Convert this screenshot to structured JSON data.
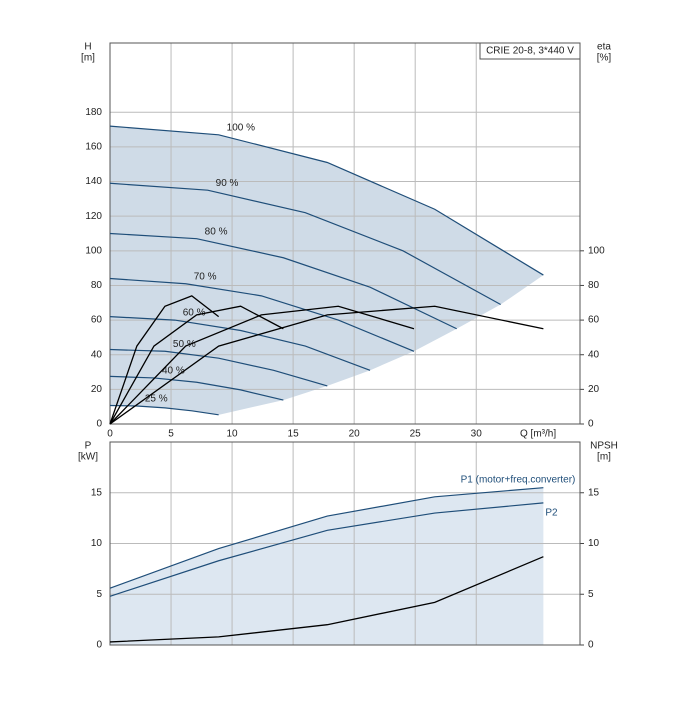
{
  "chart_data": [
    {
      "type": "line",
      "annotation": "CRIE 20-8, 3*440 V",
      "y_label": [
        "H",
        "[m]"
      ],
      "y2_label": [
        "eta",
        "[%]"
      ],
      "x_label": "Q [m³/h]",
      "xlim": [
        0,
        38.5
      ],
      "xticks": [
        0,
        5,
        10,
        15,
        20,
        25,
        30
      ],
      "ylim": [
        0,
        220
      ],
      "yticks": [
        0,
        20,
        40,
        60,
        80,
        100,
        120,
        140,
        160,
        180
      ],
      "y2lim": [
        0,
        220
      ],
      "y2ticks": [
        0,
        20,
        40,
        60,
        80,
        100
      ],
      "grid": true,
      "series": [
        {
          "name": "100 %",
          "color": "#1f4e79",
          "x": [
            0,
            8.9,
            17.8,
            26.6,
            35.5
          ],
          "values": [
            172,
            167,
            151,
            124,
            86
          ]
        },
        {
          "name": "90 %",
          "color": "#1f4e79",
          "x": [
            0,
            8,
            16,
            24,
            32
          ],
          "values": [
            139,
            135,
            122,
            100,
            69
          ]
        },
        {
          "name": "80 %",
          "color": "#1f4e79",
          "x": [
            0,
            7.1,
            14.2,
            21.3,
            28.4
          ],
          "values": [
            110,
            107,
            96,
            79,
            55
          ]
        },
        {
          "name": "70 %",
          "color": "#1f4e79",
          "x": [
            0,
            6.2,
            12.4,
            18.7,
            24.9
          ],
          "values": [
            84,
            81,
            74,
            60,
            42
          ]
        },
        {
          "name": "60 %",
          "color": "#1f4e79",
          "x": [
            0,
            5.3,
            10.7,
            16,
            21.3
          ],
          "values": [
            62,
            60,
            54,
            45,
            31
          ]
        },
        {
          "name": "50 %",
          "color": "#1f4e79",
          "x": [
            0,
            4.5,
            8.9,
            13.4,
            17.8
          ],
          "values": [
            43,
            42,
            38,
            31,
            22
          ]
        },
        {
          "name": "40 %",
          "color": "#1f4e79",
          "x": [
            0,
            3.6,
            7.1,
            10.7,
            14.2
          ],
          "values": [
            27.5,
            26.6,
            24.1,
            19.7,
            13.8
          ]
        },
        {
          "name": "25 %",
          "color": "#1f4e79",
          "x": [
            0,
            2.2,
            4.5,
            6.7,
            8.9
          ],
          "values": [
            10.7,
            10.4,
            9.3,
            7.6,
            5.3
          ]
        },
        {
          "color": "#000000",
          "axis": "y2",
          "x": [
            0,
            8.9,
            17.8,
            26.6,
            35.5
          ],
          "values": [
            0,
            45,
            63,
            68,
            55
          ]
        },
        {
          "color": "#000000",
          "axis": "y2",
          "x": [
            0,
            6.2,
            12.4,
            18.7,
            24.9
          ],
          "values": [
            0,
            45,
            63,
            68,
            55
          ]
        },
        {
          "color": "#000000",
          "axis": "y2",
          "x": [
            0,
            3.6,
            7.1,
            10.7,
            14.2
          ],
          "values": [
            0,
            45,
            63,
            68,
            55
          ]
        },
        {
          "color": "#000000",
          "axis": "y2",
          "x": [
            0,
            2.2,
            4.5,
            6.7,
            8.9
          ],
          "values": [
            0,
            45,
            68,
            74,
            62
          ]
        }
      ]
    },
    {
      "type": "line",
      "y_label": [
        "P",
        "[kW]"
      ],
      "y2_label": [
        "NPSH",
        "[m]"
      ],
      "xlim": [
        0,
        38.5
      ],
      "xticks": [
        0,
        5,
        10,
        15,
        20,
        25,
        30
      ],
      "ylim": [
        0,
        20
      ],
      "yticks": [
        0,
        5,
        10,
        15
      ],
      "y2lim": [
        0,
        20
      ],
      "y2ticks": [
        0,
        5,
        10,
        15
      ],
      "grid": true,
      "series": [
        {
          "name": "P1 (motor+freq.converter)",
          "color": "#1f4e79",
          "x": [
            0,
            8.9,
            17.8,
            26.6,
            35.5
          ],
          "values": [
            5.6,
            9.5,
            12.7,
            14.6,
            15.5
          ]
        },
        {
          "name": "P2",
          "color": "#1f4e79",
          "x": [
            0,
            8.9,
            17.8,
            26.6,
            35.5
          ],
          "values": [
            4.8,
            8.3,
            11.3,
            13.0,
            14.0
          ]
        },
        {
          "color": "#000000",
          "axis": "y2",
          "x": [
            0,
            8.9,
            17.8,
            26.6,
            35.5
          ],
          "values": [
            0.3,
            0.8,
            2.0,
            4.2,
            8.7
          ]
        }
      ]
    }
  ]
}
